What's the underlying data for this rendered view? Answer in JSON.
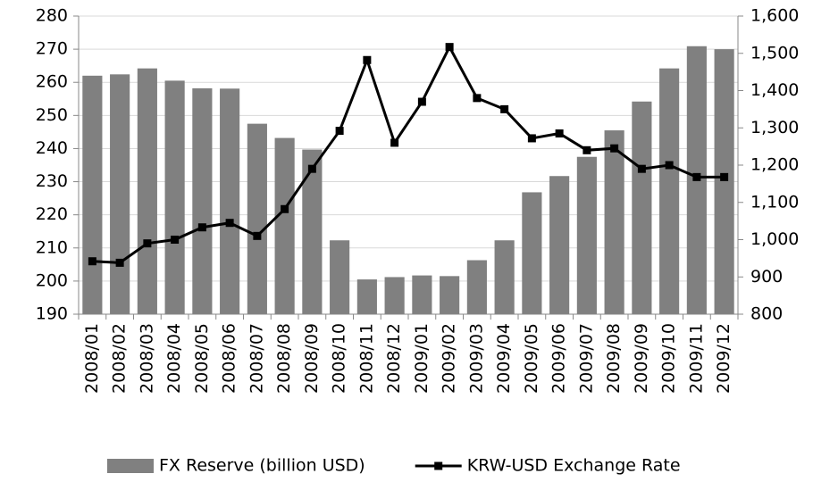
{
  "chart_data": {
    "type": "bar-line",
    "categories": [
      "2008/01",
      "2008/02",
      "2008/03",
      "2008/04",
      "2008/05",
      "2008/06",
      "2008/07",
      "2008/08",
      "2008/09",
      "2008/10",
      "2008/11",
      "2008/12",
      "2009/01",
      "2009/02",
      "2009/03",
      "2009/04",
      "2009/05",
      "2009/06",
      "2009/07",
      "2009/08",
      "2009/09",
      "2009/10",
      "2009/11",
      "2009/12"
    ],
    "series": [
      {
        "name": "FX Reserve (billion USD)",
        "color": "#808080",
        "type": "bar",
        "values": [
          262.0,
          262.4,
          264.2,
          260.5,
          258.2,
          258.1,
          247.5,
          243.2,
          239.7,
          212.3,
          200.5,
          201.2,
          201.7,
          201.5,
          206.3,
          212.3,
          226.8,
          231.7,
          237.5,
          245.5,
          254.2,
          264.2,
          270.9,
          270.0
        ]
      },
      {
        "name": "KRW-USD Exchange Rate",
        "color": "#000000",
        "type": "line",
        "axis": "y2",
        "values": [
          942,
          938,
          990,
          1000,
          1033,
          1045,
          1010,
          1082,
          1190,
          1292,
          1482,
          1260,
          1370,
          1517,
          1380,
          1350,
          1272,
          1285,
          1240,
          1245,
          1190,
          1200,
          1168,
          1168
        ]
      }
    ],
    "ylim": [
      190,
      280
    ],
    "yticks": [
      190,
      200,
      210,
      220,
      230,
      240,
      250,
      260,
      270,
      280
    ],
    "y2lim": [
      800,
      1600
    ],
    "y2ticks": [
      800,
      900,
      {
        "value": 1000,
        "label": "1,000"
      },
      {
        "value": 1100,
        "label": "1,100"
      },
      {
        "value": 1200,
        "label": "1,200"
      },
      {
        "value": 1300,
        "label": "1,300"
      },
      {
        "value": 1400,
        "label": "1,400"
      },
      {
        "value": 1500,
        "label": "1,500"
      },
      {
        "value": 1600,
        "label": "1,600"
      }
    ],
    "grid": true,
    "legend": "bottom"
  }
}
